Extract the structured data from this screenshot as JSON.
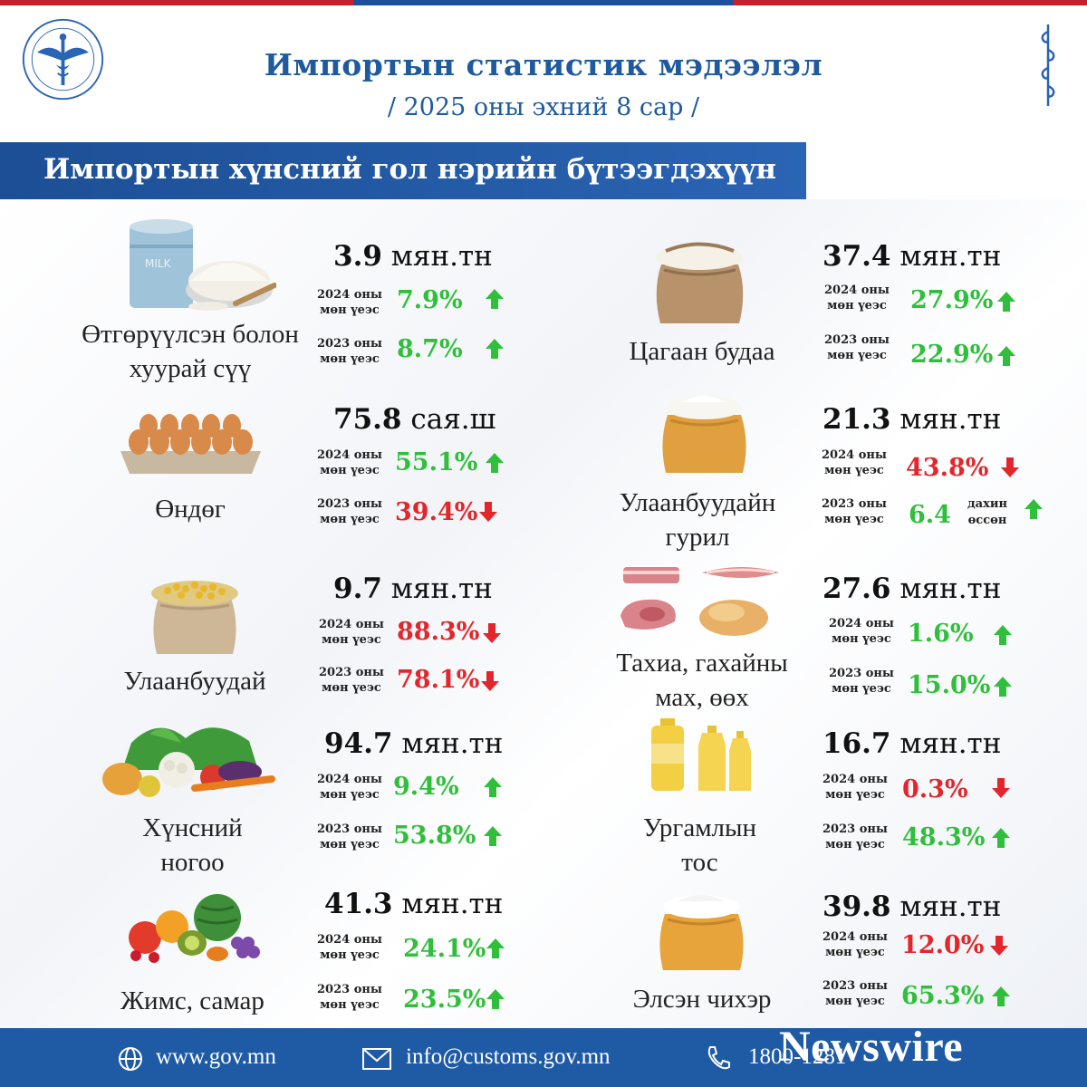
{
  "header": {
    "title": "Импортын статистик мэдээлэл",
    "subtitle": "/ 2025 оны эхний 8 сар /",
    "section": "Импортын хүнсний гол нэрийн бүтээгдэхүүн"
  },
  "colors": {
    "up": "#2fbf3b",
    "down": "#e3262b",
    "brand_blue": "#1f5aa5",
    "brand_red": "#c8202f"
  },
  "items": [
    {
      "name_line1": "Өтгөрүүлсэн болон",
      "name_line2": "хуурай сүү",
      "icon": "milk-powder-icon",
      "amount": "3.9",
      "unit": "мян.тн",
      "cmp1_label_a": "2024 оны",
      "cmp1_label_b": "мөн үеэс",
      "cmp1_value": "7.9%",
      "cmp1_dir": "up",
      "cmp2_label_a": "2023 оны",
      "cmp2_label_b": "мөн үеэс",
      "cmp2_value": "8.7%",
      "cmp2_dir": "up"
    },
    {
      "name_line1": "Өндөг",
      "name_line2": "",
      "icon": "egg-tray-icon",
      "amount": "75.8",
      "unit": "сая.ш",
      "cmp1_label_a": "2024 оны",
      "cmp1_label_b": "мөн үеэс",
      "cmp1_value": "55.1%",
      "cmp1_dir": "up",
      "cmp2_label_a": "2023 оны",
      "cmp2_label_b": "мөн үеэс",
      "cmp2_value": "39.4%",
      "cmp2_dir": "down"
    },
    {
      "name_line1": "Улаанбуудай",
      "name_line2": "",
      "icon": "wheat-sack-icon",
      "amount": "9.7",
      "unit": "мян.тн",
      "cmp1_label_a": "2024 оны",
      "cmp1_label_b": "мөн үеэс",
      "cmp1_value": "88.3%",
      "cmp1_dir": "down",
      "cmp2_label_a": "2023 оны",
      "cmp2_label_b": "мөн үеэс",
      "cmp2_value": "78.1%",
      "cmp2_dir": "down"
    },
    {
      "name_line1": "Хүнсний",
      "name_line2": "ногоо",
      "icon": "vegetables-icon",
      "amount": "94.7",
      "unit": "мян.тн",
      "cmp1_label_a": "2024 оны",
      "cmp1_label_b": "мөн үеэс",
      "cmp1_value": "9.4%",
      "cmp1_dir": "up",
      "cmp2_label_a": "2023 оны",
      "cmp2_label_b": "мөн үеэс",
      "cmp2_value": "53.8%",
      "cmp2_dir": "up"
    },
    {
      "name_line1": "Жимс, самар",
      "name_line2": "",
      "icon": "fruits-icon",
      "amount": "41.3",
      "unit": "мян.тн",
      "cmp1_label_a": "2024 оны",
      "cmp1_label_b": "мөн үеэс",
      "cmp1_value": "24.1%",
      "cmp1_dir": "up",
      "cmp2_label_a": "2023 оны",
      "cmp2_label_b": "мөн үеэс",
      "cmp2_value": "23.5%",
      "cmp2_dir": "up"
    },
    {
      "name_line1": "Цагаан будаа",
      "name_line2": "",
      "icon": "rice-sack-icon",
      "amount": "37.4",
      "unit": "мян.тн",
      "cmp1_label_a": "2024 оны",
      "cmp1_label_b": "мөн үеэс",
      "cmp1_value": "27.9%",
      "cmp1_dir": "up",
      "cmp2_label_a": "2023 оны",
      "cmp2_label_b": "мөн үеэс",
      "cmp2_value": "22.9%",
      "cmp2_dir": "up"
    },
    {
      "name_line1": "Улаанбуудайн",
      "name_line2": "гурил",
      "icon": "flour-sack-icon",
      "amount": "21.3",
      "unit": "мян.тн",
      "cmp1_label_a": "2024 оны",
      "cmp1_label_b": "мөн үеэс",
      "cmp1_value": "43.8%",
      "cmp1_dir": "down",
      "cmp2_label_a": "2023 оны",
      "cmp2_label_b": "мөн үеэс",
      "cmp2_value": "6.4",
      "cmp2_dir": "up",
      "cmp2_note_a": "дахин",
      "cmp2_note_b": "өссөн"
    },
    {
      "name_line1": "Тахиа, гахайны",
      "name_line2": "мах, өөх",
      "icon": "meat-icon",
      "amount": "27.6",
      "unit": "мян.тн",
      "cmp1_label_a": "2024 оны",
      "cmp1_label_b": "мөн үеэс",
      "cmp1_value": "1.6%",
      "cmp1_dir": "up",
      "cmp2_label_a": "2023 оны",
      "cmp2_label_b": "мөн үеэс",
      "cmp2_value": "15.0%",
      "cmp2_dir": "up"
    },
    {
      "name_line1": "Ургамлын",
      "name_line2": "тос",
      "icon": "oil-bottles-icon",
      "amount": "16.7",
      "unit": "мян.тн",
      "cmp1_label_a": "2024 оны",
      "cmp1_label_b": "мөн үеэс",
      "cmp1_value": "0.3%",
      "cmp1_dir": "down",
      "cmp2_label_a": "2023 оны",
      "cmp2_label_b": "мөн үеэс",
      "cmp2_value": "48.3%",
      "cmp2_dir": "up"
    },
    {
      "name_line1": "Элсэн чихэр",
      "name_line2": "",
      "icon": "sugar-sack-icon",
      "amount": "39.8",
      "unit": "мян.тн",
      "cmp1_label_a": "2024 оны",
      "cmp1_label_b": "мөн үеэс",
      "cmp1_value": "12.0%",
      "cmp1_dir": "down",
      "cmp2_label_a": "2023 оны",
      "cmp2_label_b": "мөн үеэс",
      "cmp2_value": "65.3%",
      "cmp2_dir": "up"
    }
  ],
  "footer": {
    "website": "www.gov.mn",
    "email": "info@customs.gov.mn",
    "phone": "1800-1281",
    "watermark": "Newswire"
  }
}
